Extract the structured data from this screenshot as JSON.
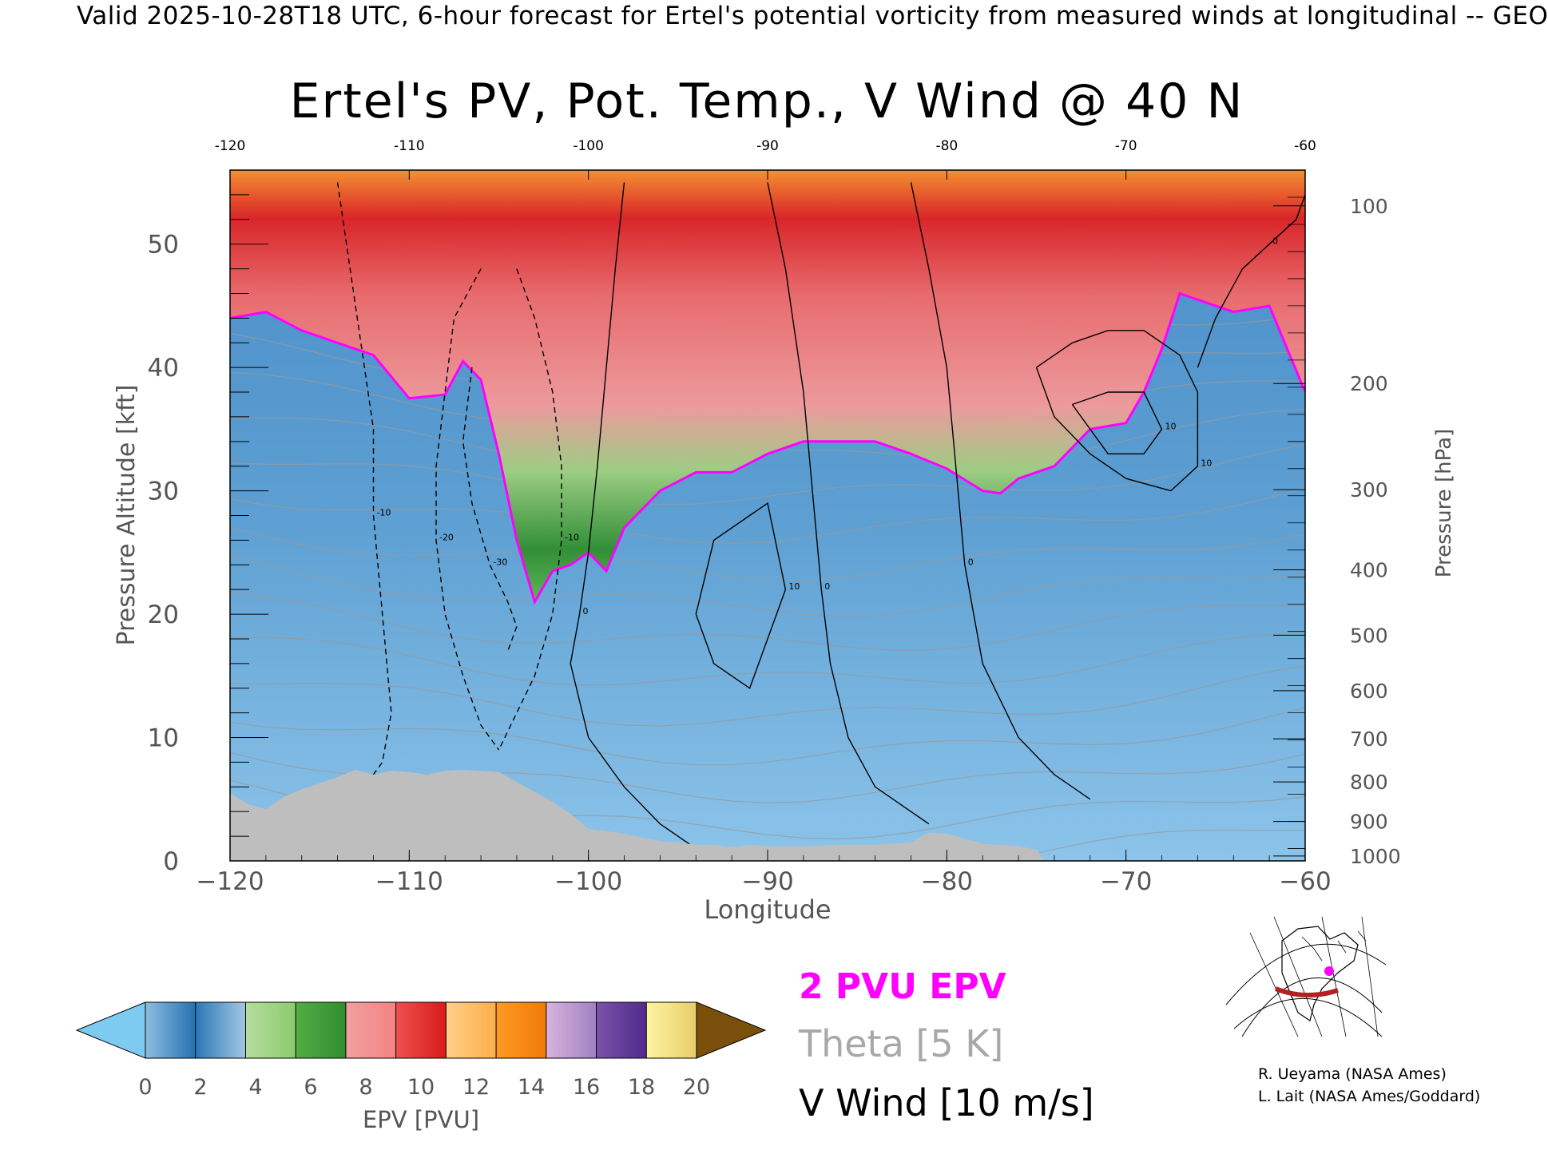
{
  "caption": "Valid 2025-10-28T18 UTC, 6-hour forecast for Ertel's potential vorticity from measured winds at longitudinal -- GEO",
  "title": "Ertel's PV, Pot. Temp., V Wind @ 40 N",
  "legend": {
    "pv": "2 PVU EPV",
    "theta": "Theta [5 K]",
    "wind": "V Wind [10 m/s]"
  },
  "credits": [
    "R. Ueyama (NASA Ames)",
    "L. Lait (NASA Ames/Goddard)"
  ],
  "chart_data": {
    "type": "heatmap",
    "title": "Ertel's PV, Pot. Temp., V Wind @ 40 N",
    "xlabel": "Longitude",
    "ylabel": "Pressure Altitude [kft]",
    "y2label": "Pressure [hPa]",
    "xlim": [
      -120,
      -60
    ],
    "ylim": [
      0,
      56
    ],
    "x_ticks": [
      -120,
      -110,
      -100,
      -90,
      -80,
      -70,
      -60
    ],
    "x_tick_labels": [
      "−120",
      "−110",
      "−100",
      "−90",
      "−80",
      "−70",
      "−60"
    ],
    "top_tick_labels": [
      "-120",
      "-110",
      "-100",
      "-90",
      "-80",
      "-70",
      "-60"
    ],
    "y_ticks": [
      0,
      10,
      20,
      30,
      40,
      50
    ],
    "y_tick_labels": [
      "0",
      "10",
      "20",
      "30",
      "40",
      "50"
    ],
    "pressure_ticks": [
      {
        "label": "100",
        "kft": 53.1
      },
      {
        "label": "200",
        "kft": 38.7
      },
      {
        "label": "300",
        "kft": 30.1
      },
      {
        "label": "400",
        "kft": 23.6
      },
      {
        "label": "500",
        "kft": 18.3
      },
      {
        "label": "600",
        "kft": 13.8
      },
      {
        "label": "700",
        "kft": 9.9
      },
      {
        "label": "800",
        "kft": 6.4
      },
      {
        "label": "900",
        "kft": 3.2
      },
      {
        "label": "1000",
        "kft": 0.4
      }
    ],
    "colorbar": {
      "label": "EPV [PVU]",
      "ticks": [
        "0",
        "2",
        "4",
        "6",
        "8",
        "10",
        "12",
        "14",
        "16",
        "18",
        "20"
      ],
      "under_color": "#7ecbf2",
      "over_color": "#7a4f0c",
      "bins": [
        [
          "#8fbde0",
          "#2270b3"
        ],
        [
          "#2a77b8",
          "#a6c8e2"
        ],
        [
          "#b8dca0",
          "#8acb6c"
        ],
        [
          "#54ad45",
          "#2f8e2f"
        ],
        [
          "#f2a0a0",
          "#f48282"
        ],
        [
          "#ef5050",
          "#d81a1a"
        ],
        [
          "#ffd08a",
          "#ffad4a"
        ],
        [
          "#ff9a22",
          "#ef7a08"
        ],
        [
          "#d8b4dc",
          "#a080c4"
        ],
        [
          "#7a52a8",
          "#502a8e"
        ],
        [
          "#fff4a0",
          "#e8cc6a"
        ]
      ]
    },
    "tropopause_2pvu": {
      "lon": [
        -120,
        -118,
        -116,
        -114,
        -112,
        -110,
        -108,
        -107,
        -106,
        -105,
        -104,
        -103,
        -102,
        -101,
        -100,
        -99,
        -98,
        -96,
        -94,
        -92,
        -90,
        -88,
        -86,
        -84,
        -82,
        -80,
        -78,
        -77,
        -76,
        -74,
        -72,
        -70,
        -69,
        -68,
        -67,
        -66,
        -64,
        -62,
        -60
      ],
      "kft": [
        44,
        44.5,
        43,
        42,
        41,
        37.5,
        37.8,
        40.5,
        39,
        33,
        26,
        21,
        23.5,
        24,
        25,
        23.5,
        27,
        30,
        31.5,
        31.5,
        33,
        34,
        34,
        34,
        33,
        31.8,
        30,
        29.8,
        31,
        32,
        35,
        35.5,
        38,
        41.5,
        46,
        45.5,
        44.5,
        45,
        38
      ]
    },
    "terrain_kft": {
      "lon": [
        -120,
        -119,
        -118,
        -117,
        -116,
        -115,
        -114,
        -113,
        -112,
        -111,
        -110,
        -109,
        -108,
        -107,
        -106,
        -105,
        -104,
        -103,
        -102,
        -101,
        -100,
        -99,
        -98,
        -97,
        -96,
        -95,
        -94,
        -93,
        -92,
        -91,
        -90,
        -88,
        -86,
        -84,
        -82,
        -81,
        -80,
        -78,
        -76,
        -75,
        -74.5
      ],
      "kft": [
        5.5,
        4.6,
        4.2,
        5.2,
        5.8,
        6.3,
        6.8,
        7.4,
        7.0,
        7.3,
        7.2,
        7.0,
        7.3,
        7.4,
        7.3,
        7.2,
        6.4,
        5.6,
        4.8,
        3.8,
        2.6,
        2.4,
        2.2,
        1.9,
        1.6,
        1.5,
        1.3,
        1.3,
        1.1,
        1.3,
        1.2,
        1.2,
        1.3,
        1.3,
        1.5,
        2.3,
        2.2,
        1.4,
        1.2,
        0.9,
        0
      ]
    },
    "theta_isentropes_kft_at_west": [
      3,
      6,
      9,
      12,
      15,
      18,
      21,
      24,
      27,
      30,
      33,
      36,
      39,
      42,
      45,
      48,
      51,
      54
    ],
    "v_wind_contours": [
      {
        "label": "-10",
        "dashed": true,
        "lon": [
          -114,
          -113.5,
          -113,
          -112.5,
          -112,
          -112,
          -111.5,
          -111,
          -111.5,
          -113
        ],
        "kft": [
          55,
          50,
          45,
          40,
          35,
          28,
          20,
          12,
          8,
          5
        ]
      },
      {
        "label": "-20",
        "dashed": true,
        "lon": [
          -106,
          -107.5,
          -108,
          -108.5,
          -108.5,
          -108,
          -107,
          -106,
          -105
        ],
        "kft": [
          48,
          44,
          38,
          32,
          26,
          20,
          15,
          11,
          9
        ]
      },
      {
        "label": "-30",
        "dashed": true,
        "lon": [
          -106.5,
          -107,
          -106.5,
          -105.5,
          -104.5,
          -104,
          -104.5
        ],
        "kft": [
          40,
          34,
          29,
          24,
          21,
          19,
          17
        ]
      },
      {
        "label": "-10",
        "dashed": true,
        "lon": [
          -104,
          -103,
          -102,
          -101.5,
          -101.5,
          -102,
          -103,
          -104,
          -105
        ],
        "kft": [
          48,
          44,
          38,
          32,
          26,
          20,
          15,
          12,
          9
        ]
      },
      {
        "label": "0",
        "dashed": false,
        "lon": [
          -98,
          -98.5,
          -99,
          -99.5,
          -100,
          -100.5,
          -101,
          -100,
          -98,
          -96,
          -94
        ],
        "kft": [
          55,
          48,
          40,
          32,
          25,
          20,
          16,
          10,
          6,
          3,
          1
        ]
      },
      {
        "label": "0",
        "dashed": false,
        "lon": [
          -90,
          -89,
          -88,
          -87.5,
          -87,
          -86.5,
          -85.5,
          -84,
          -81
        ],
        "kft": [
          55,
          48,
          38,
          30,
          22,
          16,
          10,
          6,
          3
        ]
      },
      {
        "label": "10",
        "dashed": false,
        "lon": [
          -94,
          -93,
          -91,
          -90,
          -89,
          -90,
          -91,
          -93,
          -94
        ],
        "kft": [
          20,
          26,
          28,
          29,
          22,
          18,
          14,
          16,
          20
        ]
      },
      {
        "label": "0",
        "dashed": false,
        "lon": [
          -82,
          -81,
          -80,
          -79.5,
          -79,
          -78,
          -76,
          -74,
          -72
        ],
        "kft": [
          55,
          48,
          40,
          32,
          24,
          16,
          10,
          7,
          5
        ]
      },
      {
        "label": "10",
        "dashed": false,
        "lon": [
          -75,
          -73,
          -71,
          -69,
          -67,
          -66,
          -66,
          -67.5,
          -70,
          -72,
          -74,
          -75
        ],
        "kft": [
          40,
          42,
          43,
          43,
          41,
          38,
          32,
          30,
          31,
          33,
          36,
          40
        ]
      },
      {
        "label": "10",
        "dashed": false,
        "lon": [
          -73,
          -71,
          -69,
          -68,
          -69,
          -71,
          -73
        ],
        "kft": [
          37,
          38,
          38,
          35,
          33,
          33,
          37
        ]
      },
      {
        "label": "0",
        "dashed": false,
        "lon": [
          -66,
          -65,
          -63.5,
          -62,
          -60.5,
          -60
        ],
        "kft": [
          40,
          44,
          48,
          50,
          52,
          54
        ]
      }
    ]
  }
}
